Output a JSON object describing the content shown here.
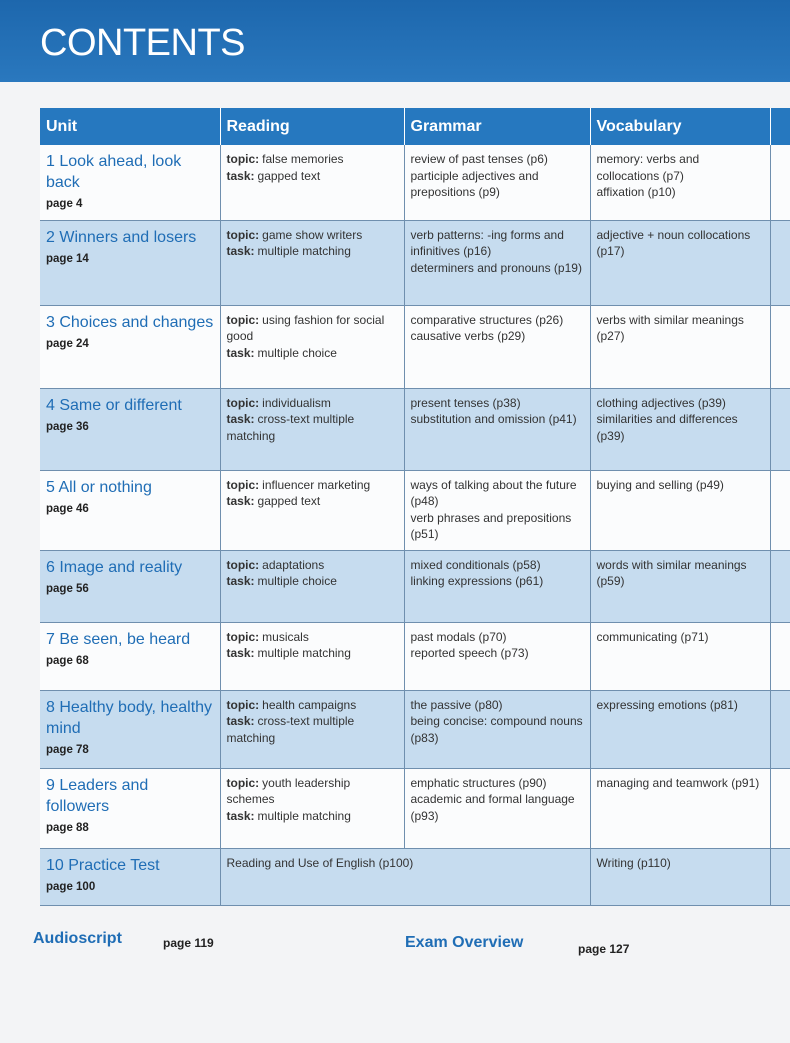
{
  "header": {
    "title": "CONTENTS"
  },
  "table": {
    "headers": [
      "Unit",
      "Reading",
      "Grammar",
      "Vocabulary"
    ],
    "rows": [
      {
        "unit": {
          "title": "1 Look ahead, look back",
          "page": "page 4"
        },
        "reading": [
          {
            "label": "topic:",
            "text": "false memories"
          },
          {
            "label": "task:",
            "text": "gapped text"
          }
        ],
        "grammar": [
          "review of past tenses (p6)",
          "participle adjectives and prepositions (p9)"
        ],
        "vocabulary": [
          "memory: verbs and collocations (p7)",
          "affixation (p10)"
        ]
      },
      {
        "unit": {
          "title": "2 Winners and losers",
          "page": "page 14"
        },
        "reading": [
          {
            "label": "topic:",
            "text": "game show writers"
          },
          {
            "label": "task:",
            "text": "multiple matching"
          }
        ],
        "grammar": [
          "verb patterns: -ing forms and infinitives (p16)",
          "determiners and pronouns (p19)"
        ],
        "vocabulary": [
          "adjective + noun collocations (p17)"
        ]
      },
      {
        "unit": {
          "title": "3 Choices and changes",
          "page": "page 24"
        },
        "reading": [
          {
            "label": "topic:",
            "text": "using fashion for social good"
          },
          {
            "label": "task:",
            "text": "multiple choice"
          }
        ],
        "grammar": [
          "comparative structures (p26)",
          "causative verbs (p29)"
        ],
        "vocabulary": [
          "verbs with similar meanings (p27)"
        ]
      },
      {
        "unit": {
          "title": "4 Same or different",
          "page": "page 36"
        },
        "reading": [
          {
            "label": "topic:",
            "text": "individualism"
          },
          {
            "label": "task:",
            "text": "cross-text multiple matching"
          }
        ],
        "grammar": [
          "present tenses (p38)",
          "substitution and omission (p41)"
        ],
        "vocabulary": [
          "clothing adjectives (p39)",
          "similarities and differences (p39)"
        ]
      },
      {
        "unit": {
          "title": "5 All or nothing",
          "page": "page 46"
        },
        "reading": [
          {
            "label": "topic:",
            "text": "influencer marketing"
          },
          {
            "label": "task:",
            "text": "gapped text"
          }
        ],
        "grammar": [
          "ways of talking about the future (p48)",
          "verb phrases and prepositions (p51)"
        ],
        "vocabulary": [
          "buying and selling (p49)"
        ]
      },
      {
        "unit": {
          "title": "6 Image and reality",
          "page": "page 56"
        },
        "reading": [
          {
            "label": "topic:",
            "text": "adaptations"
          },
          {
            "label": "task:",
            "text": "multiple choice"
          }
        ],
        "grammar": [
          "mixed conditionals (p58)",
          "linking expressions (p61)"
        ],
        "vocabulary": [
          "words with similar meanings (p59)"
        ]
      },
      {
        "unit": {
          "title": "7 Be seen, be heard",
          "page": "page 68"
        },
        "reading": [
          {
            "label": "topic:",
            "text": "musicals"
          },
          {
            "label": "task:",
            "text": "multiple matching"
          }
        ],
        "grammar": [
          "past modals (p70)",
          "reported speech (p73)"
        ],
        "vocabulary": [
          "communicating (p71)"
        ]
      },
      {
        "unit": {
          "title": "8 Healthy body, healthy mind",
          "page": "page 78"
        },
        "reading": [
          {
            "label": "topic:",
            "text": "health campaigns"
          },
          {
            "label": "task:",
            "text": "cross-text multiple matching"
          }
        ],
        "grammar": [
          "the passive (p80)",
          "being concise: compound nouns (p83)"
        ],
        "vocabulary": [
          "expressing emotions (p81)"
        ]
      },
      {
        "unit": {
          "title": "9 Leaders and followers",
          "page": "page 88"
        },
        "reading": [
          {
            "label": "topic:",
            "text": "youth leadership schemes"
          },
          {
            "label": "task:",
            "text": "multiple matching"
          }
        ],
        "grammar": [
          "emphatic structures (p90)",
          "academic and formal language (p93)"
        ],
        "vocabulary": [
          "managing and teamwork (p91)"
        ]
      },
      {
        "unit": {
          "title": "10 Practice Test",
          "page": "page 100"
        },
        "reading": [
          {
            "text": "Reading and Use of English (p100)"
          }
        ],
        "vocabulary": [
          "Writing (p110)"
        ]
      }
    ]
  },
  "footer": [
    {
      "title": "Audioscript",
      "page": "page 119"
    },
    {
      "title": "Exam Overview",
      "page": "page 127"
    }
  ]
}
